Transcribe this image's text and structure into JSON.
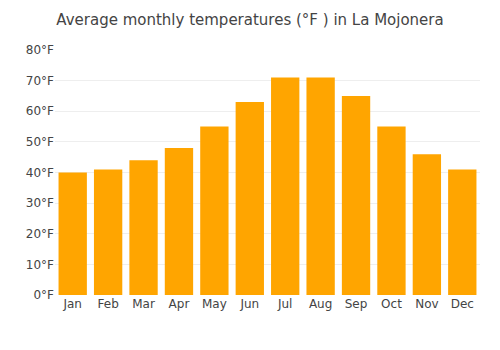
{
  "chart_data": {
    "type": "bar",
    "title": "Average monthly temperatures (°F ) in La Mojonera",
    "categories": [
      "Jan",
      "Feb",
      "Mar",
      "Apr",
      "May",
      "Jun",
      "Jul",
      "Aug",
      "Sep",
      "Oct",
      "Nov",
      "Dec"
    ],
    "values": [
      40,
      41,
      44,
      48,
      55,
      63,
      71,
      71,
      65,
      55,
      46,
      41
    ],
    "color": "#FFA500",
    "ylim": [
      0,
      80
    ],
    "yticks": [
      {
        "value": 0,
        "label": "0°F"
      },
      {
        "value": 10,
        "label": "10°F"
      },
      {
        "value": 20,
        "label": "20°F"
      },
      {
        "value": 30,
        "label": "30°F"
      },
      {
        "value": 40,
        "label": "40°F"
      },
      {
        "value": 50,
        "label": "50°F"
      },
      {
        "value": 60,
        "label": "60°F"
      },
      {
        "value": 70,
        "label": "70°F"
      },
      {
        "value": 80,
        "label": "80°F"
      }
    ],
    "grid": true
  }
}
